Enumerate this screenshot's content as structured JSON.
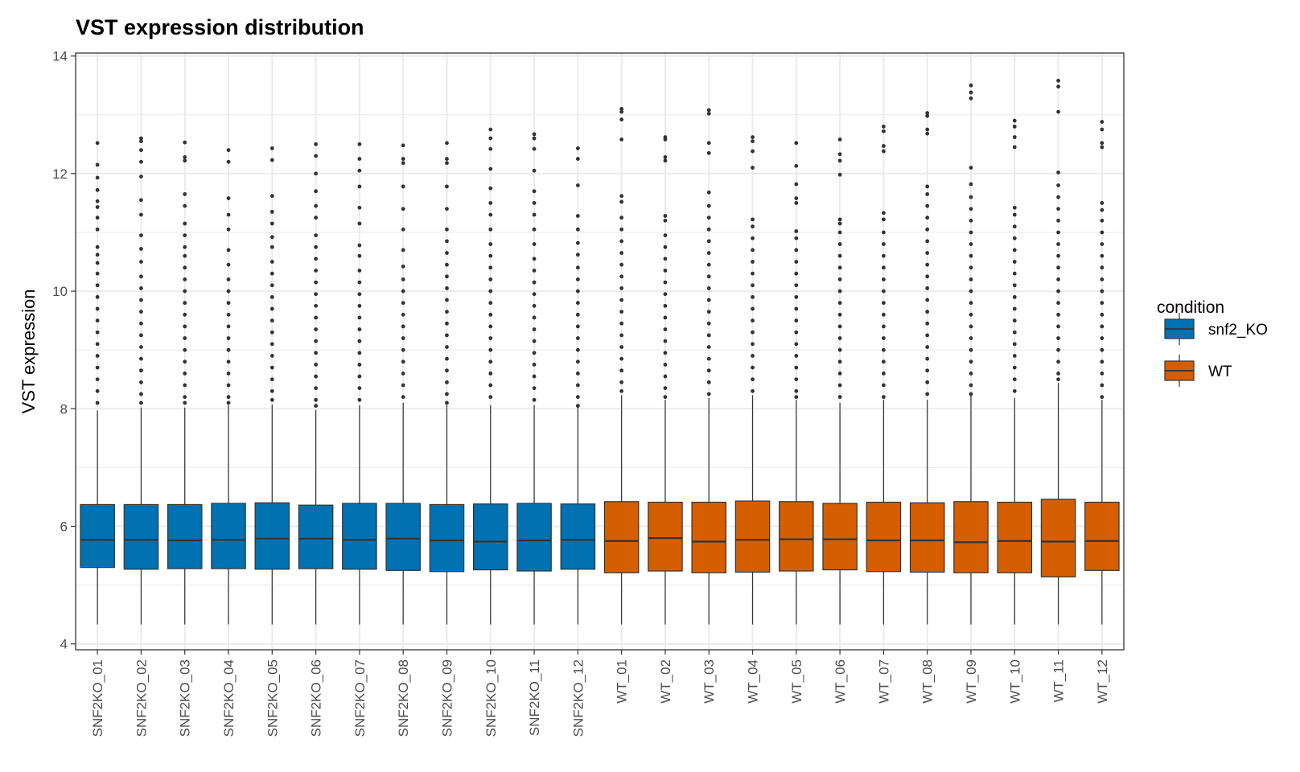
{
  "chart_data": {
    "type": "boxplot",
    "title": "VST expression distribution",
    "xlabel": "",
    "ylabel": "VST expression",
    "ylim": [
      3.9,
      14.05
    ],
    "yticks": [
      4,
      6,
      8,
      10,
      12,
      14
    ],
    "grid": true,
    "legend": {
      "title": "condition",
      "placement": "right",
      "entries": [
        {
          "label": "snf2_KO",
          "color": "#0072b2"
        },
        {
          "label": "WT",
          "color": "#d55e00"
        }
      ]
    },
    "colors": {
      "snf2_KO": "#0072b2",
      "WT": "#d55e00",
      "outline": "#333333",
      "grid": "#ebebeb"
    },
    "samples": [
      {
        "name": "SNF2KO_01",
        "condition": "snf2_KO",
        "lower_whisker": 4.33,
        "q1": 5.3,
        "median": 5.77,
        "q3": 6.37,
        "upper_whisker": 7.97,
        "outliers": [
          12.52,
          12.15,
          11.93,
          11.72,
          11.53,
          11.43,
          11.25,
          11.05,
          10.75,
          10.62,
          10.48,
          10.3,
          10.1,
          9.9,
          9.7,
          9.5,
          9.3,
          9.1,
          8.9,
          8.7,
          8.5,
          8.3,
          8.1
        ]
      },
      {
        "name": "SNF2KO_02",
        "condition": "snf2_KO",
        "lower_whisker": 4.33,
        "q1": 5.27,
        "median": 5.77,
        "q3": 6.37,
        "upper_whisker": 8.02,
        "outliers": [
          12.6,
          12.55,
          12.4,
          12.2,
          11.95,
          11.55,
          11.3,
          10.95,
          10.72,
          10.5,
          10.25,
          10.05,
          9.85,
          9.65,
          9.45,
          9.25,
          9.05,
          8.85,
          8.65,
          8.45,
          8.25,
          8.1
        ]
      },
      {
        "name": "SNF2KO_03",
        "condition": "snf2_KO",
        "lower_whisker": 4.33,
        "q1": 5.28,
        "median": 5.76,
        "q3": 6.37,
        "upper_whisker": 8.02,
        "outliers": [
          12.53,
          12.28,
          12.22,
          11.65,
          11.45,
          11.15,
          10.95,
          10.75,
          10.6,
          10.4,
          10.2,
          10.0,
          9.8,
          9.6,
          9.4,
          9.2,
          9.0,
          8.8,
          8.6,
          8.4,
          8.2,
          8.1
        ]
      },
      {
        "name": "SNF2KO_04",
        "condition": "snf2_KO",
        "lower_whisker": 4.33,
        "q1": 5.28,
        "median": 5.77,
        "q3": 6.39,
        "upper_whisker": 8.06,
        "outliers": [
          12.4,
          12.2,
          11.58,
          11.3,
          11.05,
          10.7,
          10.45,
          10.2,
          10.0,
          9.8,
          9.6,
          9.4,
          9.2,
          9.0,
          8.8,
          8.6,
          8.4,
          8.2,
          8.1
        ]
      },
      {
        "name": "SNF2KO_05",
        "condition": "snf2_KO",
        "lower_whisker": 4.33,
        "q1": 5.27,
        "median": 5.79,
        "q3": 6.4,
        "upper_whisker": 8.07,
        "outliers": [
          12.43,
          12.23,
          11.62,
          11.35,
          11.15,
          10.92,
          10.75,
          10.5,
          10.3,
          10.1,
          9.9,
          9.7,
          9.5,
          9.3,
          9.1,
          8.9,
          8.7,
          8.5,
          8.3,
          8.15
        ]
      },
      {
        "name": "SNF2KO_06",
        "condition": "snf2_KO",
        "lower_whisker": 4.33,
        "q1": 5.28,
        "median": 5.79,
        "q3": 6.36,
        "upper_whisker": 7.98,
        "outliers": [
          12.5,
          12.3,
          12.0,
          11.7,
          11.45,
          11.25,
          10.95,
          10.75,
          10.55,
          10.35,
          10.15,
          9.95,
          9.75,
          9.55,
          9.35,
          9.15,
          8.95,
          8.75,
          8.55,
          8.35,
          8.15,
          8.05
        ]
      },
      {
        "name": "SNF2KO_07",
        "condition": "snf2_KO",
        "lower_whisker": 4.33,
        "q1": 5.27,
        "median": 5.77,
        "q3": 6.39,
        "upper_whisker": 8.06,
        "outliers": [
          12.5,
          12.25,
          12.05,
          11.78,
          11.42,
          11.15,
          10.78,
          10.6,
          10.35,
          10.15,
          9.95,
          9.75,
          9.55,
          9.35,
          9.15,
          8.95,
          8.75,
          8.55,
          8.35,
          8.15
        ]
      },
      {
        "name": "SNF2KO_08",
        "condition": "snf2_KO",
        "lower_whisker": 4.33,
        "q1": 5.25,
        "median": 5.79,
        "q3": 6.39,
        "upper_whisker": 8.1,
        "outliers": [
          12.48,
          12.25,
          12.18,
          11.78,
          11.4,
          11.05,
          10.7,
          10.42,
          10.2,
          10.0,
          9.8,
          9.6,
          9.4,
          9.2,
          9.0,
          8.8,
          8.6,
          8.4,
          8.2
        ]
      },
      {
        "name": "SNF2KO_09",
        "condition": "snf2_KO",
        "lower_whisker": 4.33,
        "q1": 5.23,
        "median": 5.76,
        "q3": 6.37,
        "upper_whisker": 8.06,
        "outliers": [
          12.52,
          12.25,
          12.18,
          11.78,
          11.4,
          11.05,
          10.85,
          10.65,
          10.45,
          10.25,
          10.05,
          9.85,
          9.65,
          9.45,
          9.25,
          9.05,
          8.85,
          8.65,
          8.45,
          8.25,
          8.1
        ]
      },
      {
        "name": "SNF2KO_10",
        "condition": "snf2_KO",
        "lower_whisker": 4.33,
        "q1": 5.26,
        "median": 5.74,
        "q3": 6.38,
        "upper_whisker": 8.06,
        "outliers": [
          12.75,
          12.6,
          12.42,
          12.08,
          11.75,
          11.5,
          11.3,
          11.05,
          10.8,
          10.6,
          10.4,
          10.2,
          10.0,
          9.8,
          9.6,
          9.4,
          9.2,
          9.0,
          8.8,
          8.6,
          8.4,
          8.2
        ]
      },
      {
        "name": "SNF2KO_11",
        "condition": "snf2_KO",
        "lower_whisker": 4.33,
        "q1": 5.24,
        "median": 5.76,
        "q3": 6.39,
        "upper_whisker": 8.06,
        "outliers": [
          12.67,
          12.6,
          12.42,
          12.05,
          11.7,
          11.5,
          11.3,
          11.05,
          10.8,
          10.55,
          10.35,
          10.15,
          9.95,
          9.75,
          9.55,
          9.35,
          9.15,
          8.95,
          8.75,
          8.55,
          8.35,
          8.15
        ]
      },
      {
        "name": "SNF2KO_12",
        "condition": "snf2_KO",
        "lower_whisker": 4.33,
        "q1": 5.27,
        "median": 5.77,
        "q3": 6.38,
        "upper_whisker": 8.02,
        "outliers": [
          12.43,
          12.25,
          11.8,
          11.28,
          11.05,
          10.82,
          10.62,
          10.4,
          10.2,
          10.0,
          9.8,
          9.6,
          9.4,
          9.2,
          9.0,
          8.8,
          8.6,
          8.4,
          8.2,
          8.05
        ]
      },
      {
        "name": "WT_01",
        "condition": "WT",
        "lower_whisker": 4.33,
        "q1": 5.21,
        "median": 5.75,
        "q3": 6.42,
        "upper_whisker": 8.23,
        "outliers": [
          13.1,
          13.05,
          12.92,
          12.58,
          11.62,
          11.52,
          11.25,
          11.05,
          10.85,
          10.65,
          10.45,
          10.25,
          10.05,
          9.85,
          9.65,
          9.45,
          9.25,
          9.05,
          8.85,
          8.65,
          8.45,
          8.3
        ]
      },
      {
        "name": "WT_02",
        "condition": "WT",
        "lower_whisker": 4.33,
        "q1": 5.24,
        "median": 5.8,
        "q3": 6.41,
        "upper_whisker": 8.15,
        "outliers": [
          12.62,
          12.58,
          12.28,
          12.22,
          11.28,
          11.2,
          10.95,
          10.75,
          10.55,
          10.35,
          10.15,
          9.95,
          9.75,
          9.55,
          9.35,
          9.15,
          8.95,
          8.75,
          8.55,
          8.35,
          8.2
        ]
      },
      {
        "name": "WT_03",
        "condition": "WT",
        "lower_whisker": 4.33,
        "q1": 5.21,
        "median": 5.74,
        "q3": 6.41,
        "upper_whisker": 8.18,
        "outliers": [
          13.08,
          13.02,
          12.52,
          12.35,
          11.68,
          11.45,
          11.25,
          11.05,
          10.85,
          10.65,
          10.45,
          10.25,
          10.05,
          9.85,
          9.65,
          9.45,
          9.25,
          9.05,
          8.85,
          8.65,
          8.45,
          8.25
        ]
      },
      {
        "name": "WT_04",
        "condition": "WT",
        "lower_whisker": 4.33,
        "q1": 5.22,
        "median": 5.77,
        "q3": 6.43,
        "upper_whisker": 8.23,
        "outliers": [
          12.62,
          12.55,
          12.38,
          12.1,
          11.22,
          11.1,
          10.9,
          10.7,
          10.5,
          10.3,
          10.1,
          9.9,
          9.7,
          9.5,
          9.3,
          9.1,
          8.9,
          8.7,
          8.5,
          8.3
        ]
      },
      {
        "name": "WT_05",
        "condition": "WT",
        "lower_whisker": 4.33,
        "q1": 5.24,
        "median": 5.78,
        "q3": 6.42,
        "upper_whisker": 8.15,
        "outliers": [
          12.52,
          12.13,
          11.82,
          11.58,
          11.5,
          11.02,
          10.9,
          10.7,
          10.5,
          10.3,
          10.1,
          9.9,
          9.7,
          9.5,
          9.3,
          9.1,
          8.9,
          8.7,
          8.5,
          8.3,
          8.2
        ]
      },
      {
        "name": "WT_06",
        "condition": "WT",
        "lower_whisker": 4.33,
        "q1": 5.26,
        "median": 5.78,
        "q3": 6.39,
        "upper_whisker": 8.1,
        "outliers": [
          12.58,
          12.33,
          12.22,
          11.98,
          11.22,
          11.15,
          11.0,
          10.8,
          10.6,
          10.4,
          10.2,
          10.0,
          9.8,
          9.6,
          9.4,
          9.2,
          9.0,
          8.8,
          8.6,
          8.4,
          8.2
        ]
      },
      {
        "name": "WT_07",
        "condition": "WT",
        "lower_whisker": 4.33,
        "q1": 5.23,
        "median": 5.76,
        "q3": 6.41,
        "upper_whisker": 8.15,
        "outliers": [
          12.8,
          12.72,
          12.47,
          12.38,
          11.33,
          11.22,
          11.0,
          10.8,
          10.6,
          10.4,
          10.2,
          10.0,
          9.8,
          9.6,
          9.4,
          9.2,
          9.0,
          8.8,
          8.6,
          8.4,
          8.2
        ]
      },
      {
        "name": "WT_08",
        "condition": "WT",
        "lower_whisker": 4.33,
        "q1": 5.22,
        "median": 5.76,
        "q3": 6.4,
        "upper_whisker": 8.15,
        "outliers": [
          13.03,
          12.98,
          12.75,
          12.68,
          11.78,
          11.65,
          11.45,
          11.25,
          11.05,
          10.85,
          10.65,
          10.45,
          10.25,
          10.05,
          9.85,
          9.65,
          9.45,
          9.25,
          9.05,
          8.85,
          8.65,
          8.45,
          8.25
        ]
      },
      {
        "name": "WT_09",
        "condition": "WT",
        "lower_whisker": 4.33,
        "q1": 5.21,
        "median": 5.73,
        "q3": 6.42,
        "upper_whisker": 8.22,
        "outliers": [
          13.5,
          13.38,
          13.28,
          12.1,
          11.82,
          11.6,
          11.4,
          11.2,
          11.0,
          10.8,
          10.6,
          10.4,
          10.2,
          10.0,
          9.8,
          9.6,
          9.4,
          9.2,
          9.0,
          8.8,
          8.6,
          8.4,
          8.25
        ]
      },
      {
        "name": "WT_10",
        "condition": "WT",
        "lower_whisker": 4.33,
        "q1": 5.21,
        "median": 5.75,
        "q3": 6.41,
        "upper_whisker": 8.18,
        "outliers": [
          12.9,
          12.8,
          12.62,
          12.45,
          11.42,
          11.3,
          11.1,
          10.9,
          10.7,
          10.5,
          10.3,
          10.1,
          9.9,
          9.7,
          9.5,
          9.3,
          9.1,
          8.9,
          8.7,
          8.5,
          8.3
        ]
      },
      {
        "name": "WT_11",
        "condition": "WT",
        "lower_whisker": 4.33,
        "q1": 5.14,
        "median": 5.74,
        "q3": 6.46,
        "upper_whisker": 8.44,
        "outliers": [
          13.58,
          13.48,
          13.05,
          12.02,
          11.8,
          11.6,
          11.4,
          11.2,
          11.0,
          10.8,
          10.6,
          10.4,
          10.2,
          10.0,
          9.8,
          9.6,
          9.4,
          9.2,
          9.0,
          8.8,
          8.6,
          8.5
        ]
      },
      {
        "name": "WT_12",
        "condition": "WT",
        "lower_whisker": 4.33,
        "q1": 5.25,
        "median": 5.75,
        "q3": 6.41,
        "upper_whisker": 8.15,
        "outliers": [
          12.88,
          12.75,
          12.52,
          12.45,
          11.5,
          11.38,
          11.2,
          11.0,
          10.8,
          10.6,
          10.4,
          10.2,
          10.0,
          9.8,
          9.6,
          9.4,
          9.2,
          9.0,
          8.8,
          8.6,
          8.4,
          8.2
        ]
      }
    ]
  }
}
